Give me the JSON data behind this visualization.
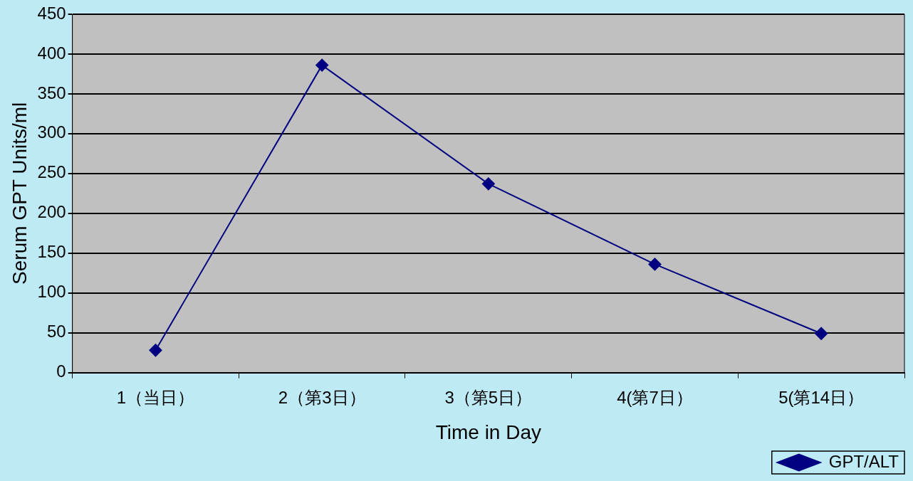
{
  "chart_data": {
    "type": "line",
    "xlabel": "Time in Day",
    "ylabel": "Serum GPT Units/ml",
    "categories": [
      "1（当日）",
      "2（第3日）",
      "3（第5日）",
      "4(第7日）",
      "5(第14日）"
    ],
    "series": [
      {
        "name": "GPT/ALT",
        "color": "#000080",
        "values": [
          28,
          386,
          237,
          136,
          49
        ]
      }
    ],
    "ylim": [
      0,
      450
    ],
    "yticks": [
      0,
      50,
      100,
      150,
      200,
      250,
      300,
      350,
      400,
      450
    ],
    "grid": "y",
    "legend": "bottom right",
    "marker": "diamond",
    "line_style": "solid"
  }
}
